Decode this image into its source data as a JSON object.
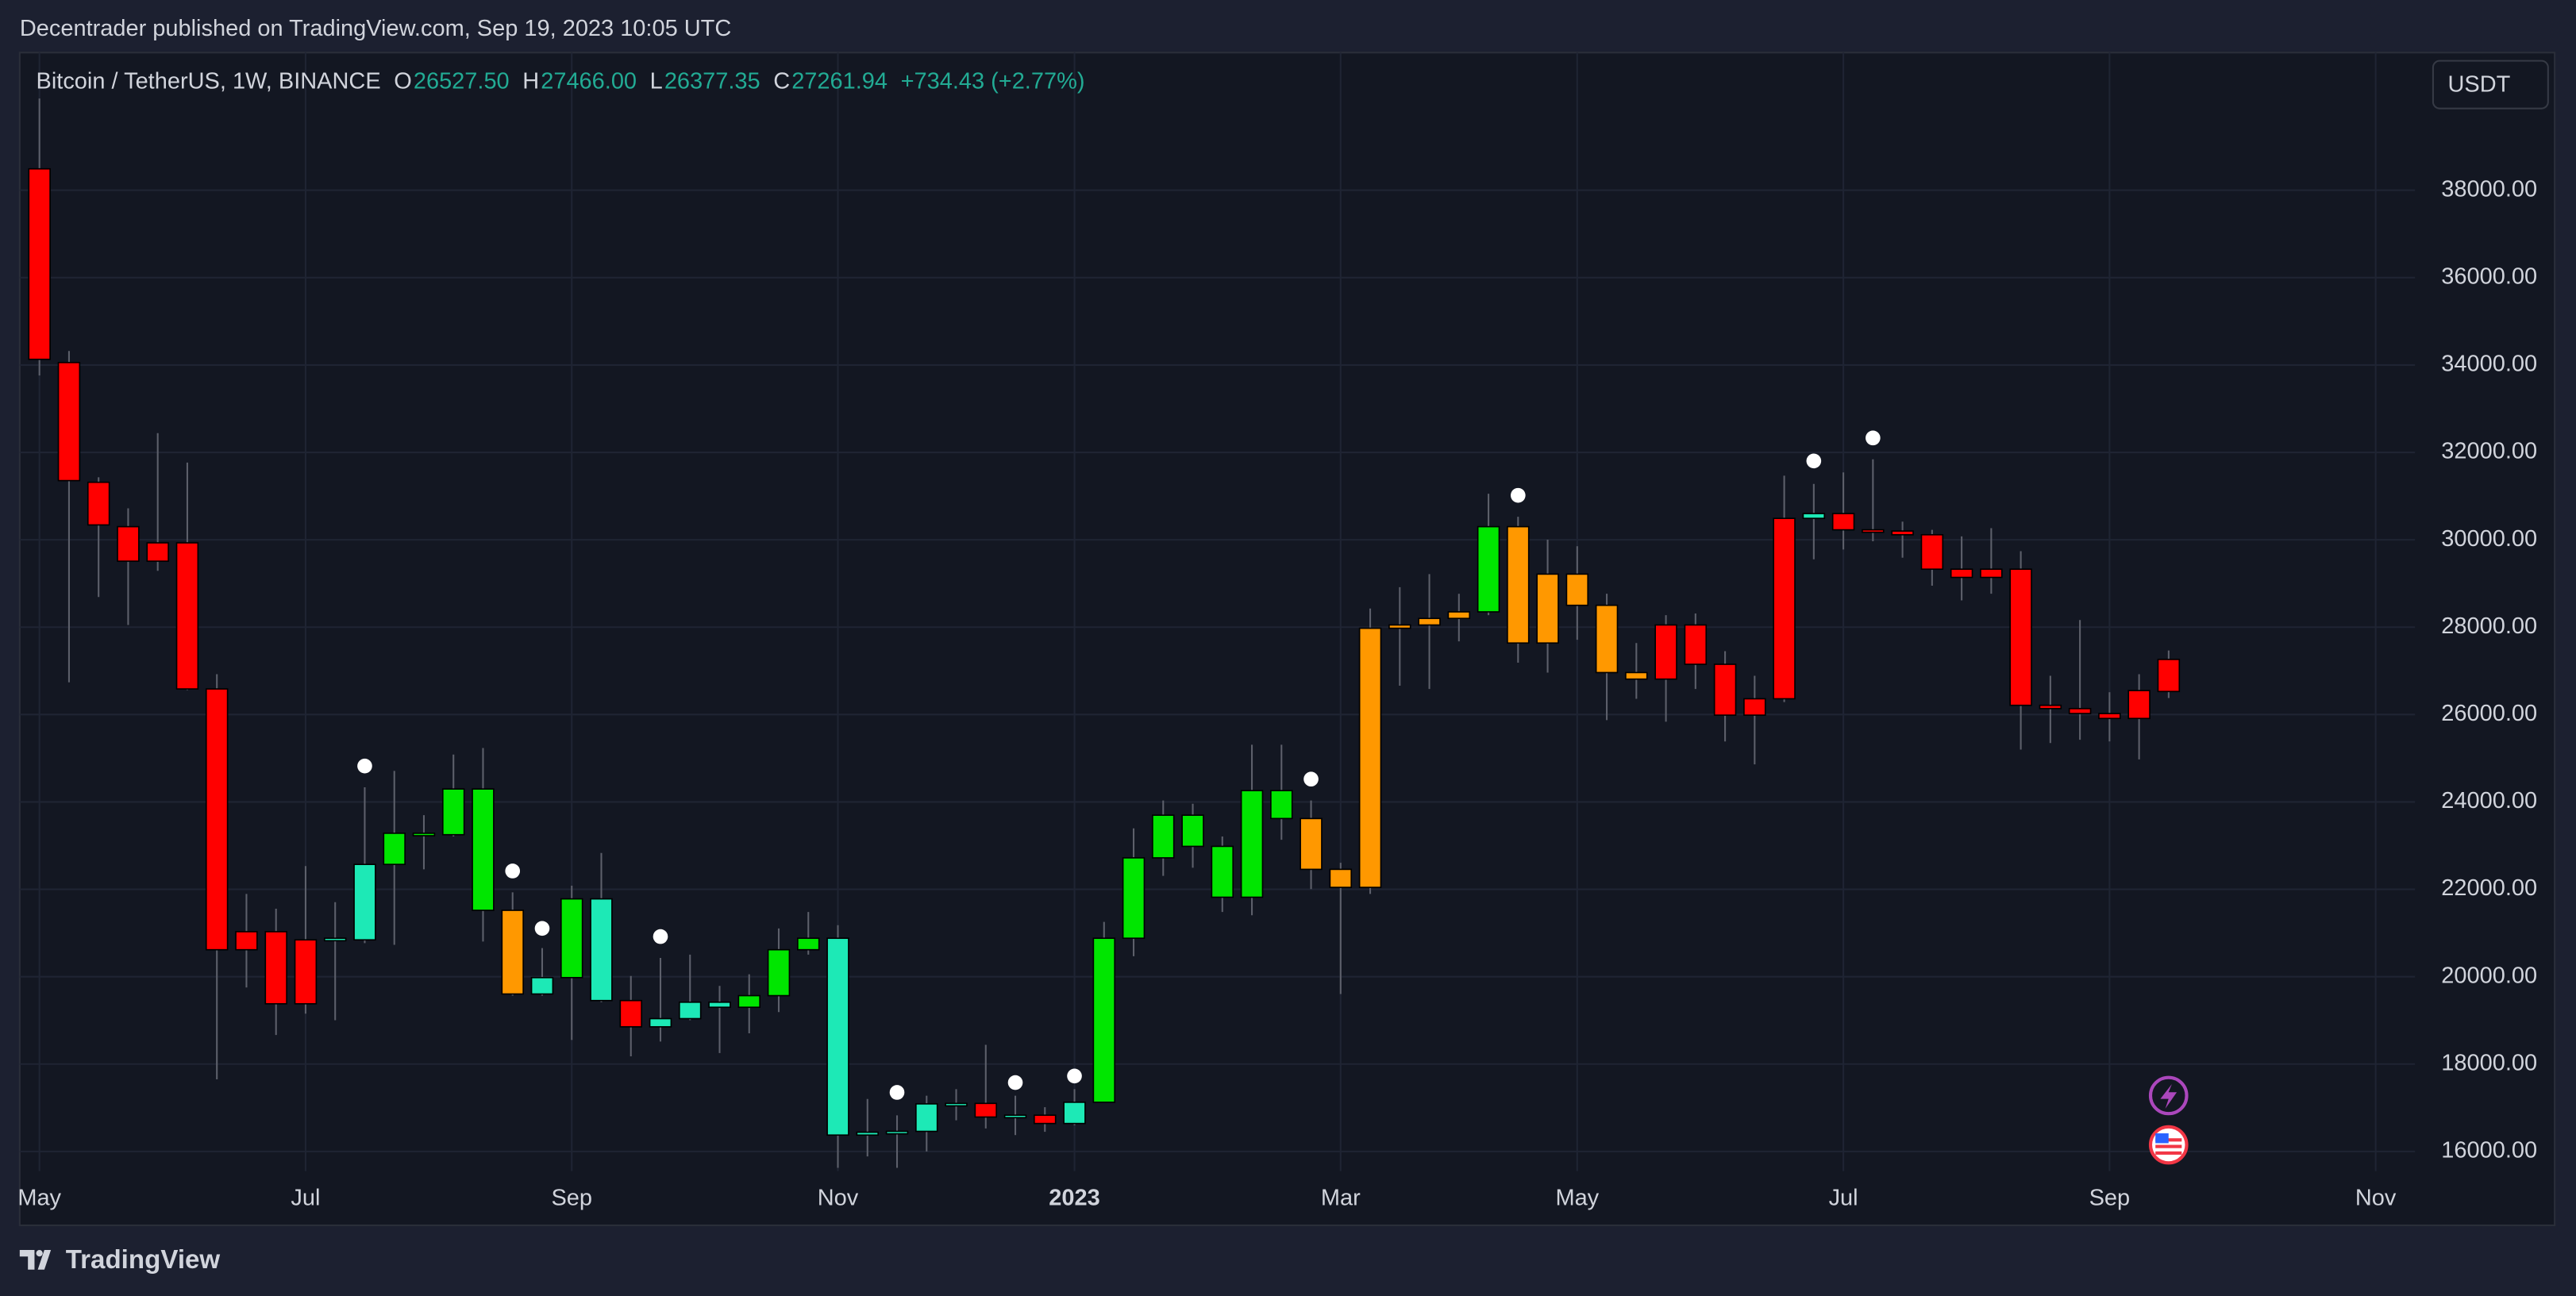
{
  "chart_data": {
    "type": "candlestick",
    "publisher": "Decentrader published on TradingView.com, Sep 19, 2023 10:05 UTC",
    "brand": "TradingView",
    "currency": "USDT",
    "legend": {
      "symbol": "Bitcoin / TetherUS, 1W, BINANCE",
      "items": [
        {
          "key": "O",
          "text": "26527.50"
        },
        {
          "key": "H",
          "text": "27466.00"
        },
        {
          "key": "L",
          "text": "26377.35"
        },
        {
          "key": "C",
          "text": "27261.94"
        }
      ],
      "change": "+734.43 (+2.77%)"
    },
    "grid": true,
    "ylim": [
      15550,
      41150
    ],
    "yticks": [
      {
        "value": 16000,
        "label": "16000.00"
      },
      {
        "value": 18000,
        "label": "18000.00"
      },
      {
        "value": 20000,
        "label": "20000.00"
      },
      {
        "value": 22000,
        "label": "22000.00"
      },
      {
        "value": 24000,
        "label": "24000.00"
      },
      {
        "value": 26000,
        "label": "26000.00"
      },
      {
        "value": 28000,
        "label": "28000.00"
      },
      {
        "value": 30000,
        "label": "30000.00"
      },
      {
        "value": 32000,
        "label": "32000.00"
      },
      {
        "value": 34000,
        "label": "34000.00"
      },
      {
        "value": 36000,
        "label": "36000.00"
      },
      {
        "value": 38000,
        "label": "38000.00"
      }
    ],
    "xlim": [
      -0.667,
      80.33
    ],
    "xticks": [
      {
        "value": 0,
        "label": "May"
      },
      {
        "value": 9,
        "label": "Jul"
      },
      {
        "value": 18,
        "label": "Sep"
      },
      {
        "value": 27,
        "label": "Nov"
      },
      {
        "value": 35,
        "label": "2023"
      },
      {
        "value": 44,
        "label": "Mar"
      },
      {
        "value": 52,
        "label": "May"
      },
      {
        "value": 61,
        "label": "Jul"
      },
      {
        "value": 70,
        "label": "Sep"
      },
      {
        "value": 79,
        "label": "Nov"
      }
    ],
    "candles": {
      "open": [
        38490,
        34057,
        31316,
        30300,
        29510,
        29930,
        26586,
        20617,
        21030,
        19380,
        20843,
        20843,
        22570,
        23283,
        23250,
        24296,
        21519,
        19604,
        19979,
        21781,
        19454,
        18853,
        19040,
        19416,
        19300,
        19566,
        20617,
        20880,
        16375,
        16440,
        16460,
        17089,
        17100,
        16788,
        16830,
        16640,
        17126,
        20880,
        22720,
        23696,
        22983,
        21819,
        24259,
        23620,
        22457,
        22044,
        27975,
        28050,
        28200,
        28350,
        30300,
        27637,
        29214,
        28500,
        26961,
        26811,
        28050,
        27150,
        25986,
        26361,
        30490,
        30600,
        30228,
        30200,
        30115,
        29327,
        29139,
        29327,
        26211,
        26136,
        26023,
        25910,
        26527.5
      ],
      "high": [
        40100,
        34320,
        31430,
        30720,
        32440,
        31767,
        26924,
        21894,
        21556,
        22532,
        21706,
        24334,
        24709,
        23696,
        25085,
        25235,
        21931,
        20655,
        22082,
        22832,
        20017,
        20430,
        20505,
        19790,
        20054,
        21105,
        21481,
        21180,
        17201,
        16826,
        17276,
        17426,
        18440,
        17276,
        17013,
        17426,
        21255,
        23395,
        24034,
        23958,
        23208,
        25310,
        25310,
        24034,
        22607,
        28426,
        28914,
        29214,
        28764,
        31054,
        30528,
        30002,
        29852,
        28764,
        27637,
        28275,
        28313,
        27450,
        26887,
        31467,
        31279,
        31542,
        31842,
        30415,
        30228,
        30077,
        30265,
        29740,
        26887,
        28163,
        26511,
        26924,
        27466
      ],
      "low": [
        33760,
        26737,
        28690,
        28050,
        29290,
        26560,
        17650,
        19754,
        18665,
        19153,
        19003,
        20768,
        20730,
        22457,
        23208,
        20805,
        19566,
        19566,
        18553,
        19416,
        18177,
        18515,
        19003,
        18252,
        18703,
        19191,
        20505,
        15625,
        15887,
        15625,
        16000,
        16713,
        16526,
        16375,
        16450,
        16600,
        17126,
        20468,
        22307,
        22494,
        21481,
        21406,
        23133,
        22006,
        19604,
        21894,
        26661,
        26586,
        27675,
        28275,
        27187,
        26961,
        27712,
        25873,
        26361,
        25835,
        26586,
        25385,
        24860,
        26286,
        29552,
        29777,
        29965,
        29590,
        28950,
        28613,
        28764,
        25197,
        25347,
        25422,
        25385,
        24972,
        26377.35
      ],
      "close": [
        34130,
        31354,
        30340,
        29510,
        29930,
        26586,
        20617,
        21030,
        19380,
        20843,
        20880,
        22570,
        23283,
        23250,
        24296,
        21519,
        19604,
        19979,
        21781,
        19454,
        18853,
        19040,
        19416,
        19300,
        19566,
        20617,
        20880,
        16375,
        16440,
        16460,
        17089,
        17100,
        16788,
        16830,
        16640,
        17126,
        20880,
        22720,
        23696,
        22983,
        21819,
        24259,
        23620,
        22457,
        22044,
        27975,
        28050,
        28200,
        28350,
        30300,
        27637,
        29214,
        28500,
        26961,
        26811,
        28050,
        27150,
        25986,
        26361,
        30490,
        30600,
        30228,
        30200,
        30115,
        29327,
        29139,
        29327,
        26211,
        26136,
        26023,
        25910,
        26549,
        27261.94
      ],
      "colors": [
        "#ff0000",
        "#ff0000",
        "#ff0000",
        "#ff0000",
        "#ff0000",
        "#ff0000",
        "#ff0000",
        "#ff0000",
        "#ff0000",
        "#ff0000",
        "#1de9b6",
        "#1de9b6",
        "#00e600",
        "#00e600",
        "#00e600",
        "#00e600",
        "#ff9800",
        "#1de9b6",
        "#00e600",
        "#1de9b6",
        "#ff0000",
        "#1de9b6",
        "#1de9b6",
        "#1de9b6",
        "#00e600",
        "#00e600",
        "#00e600",
        "#1de9b6",
        "#1de9b6",
        "#1de9b6",
        "#1de9b6",
        "#1de9b6",
        "#ff0000",
        "#1de9b6",
        "#ff0000",
        "#1de9b6",
        "#00e600",
        "#00e600",
        "#00e600",
        "#00e600",
        "#00e600",
        "#00e600",
        "#00e600",
        "#ff9800",
        "#ff9800",
        "#ff9800",
        "#ff9800",
        "#ff9800",
        "#ff9800",
        "#00e600",
        "#ff9800",
        "#ff9800",
        "#ff9800",
        "#ff9800",
        "#ff9800",
        "#ff0000",
        "#ff0000",
        "#ff0000",
        "#ff0000",
        "#ff0000",
        "#1de9b6",
        "#ff0000",
        "#ff0000",
        "#ff0000",
        "#ff0000",
        "#ff0000",
        "#ff0000",
        "#ff0000",
        "#ff0000",
        "#ff0000",
        "#ff0000",
        "#ff0000",
        "#ff0000"
      ]
    },
    "signals": {
      "x": [
        11,
        16,
        17,
        21,
        29,
        33,
        35,
        43,
        50,
        60,
        62
      ],
      "y": [
        24822,
        22419,
        21105,
        20918,
        17351,
        17577,
        17727,
        24522,
        31017,
        31804,
        32330
      ],
      "color": "#ffffff"
    }
  }
}
